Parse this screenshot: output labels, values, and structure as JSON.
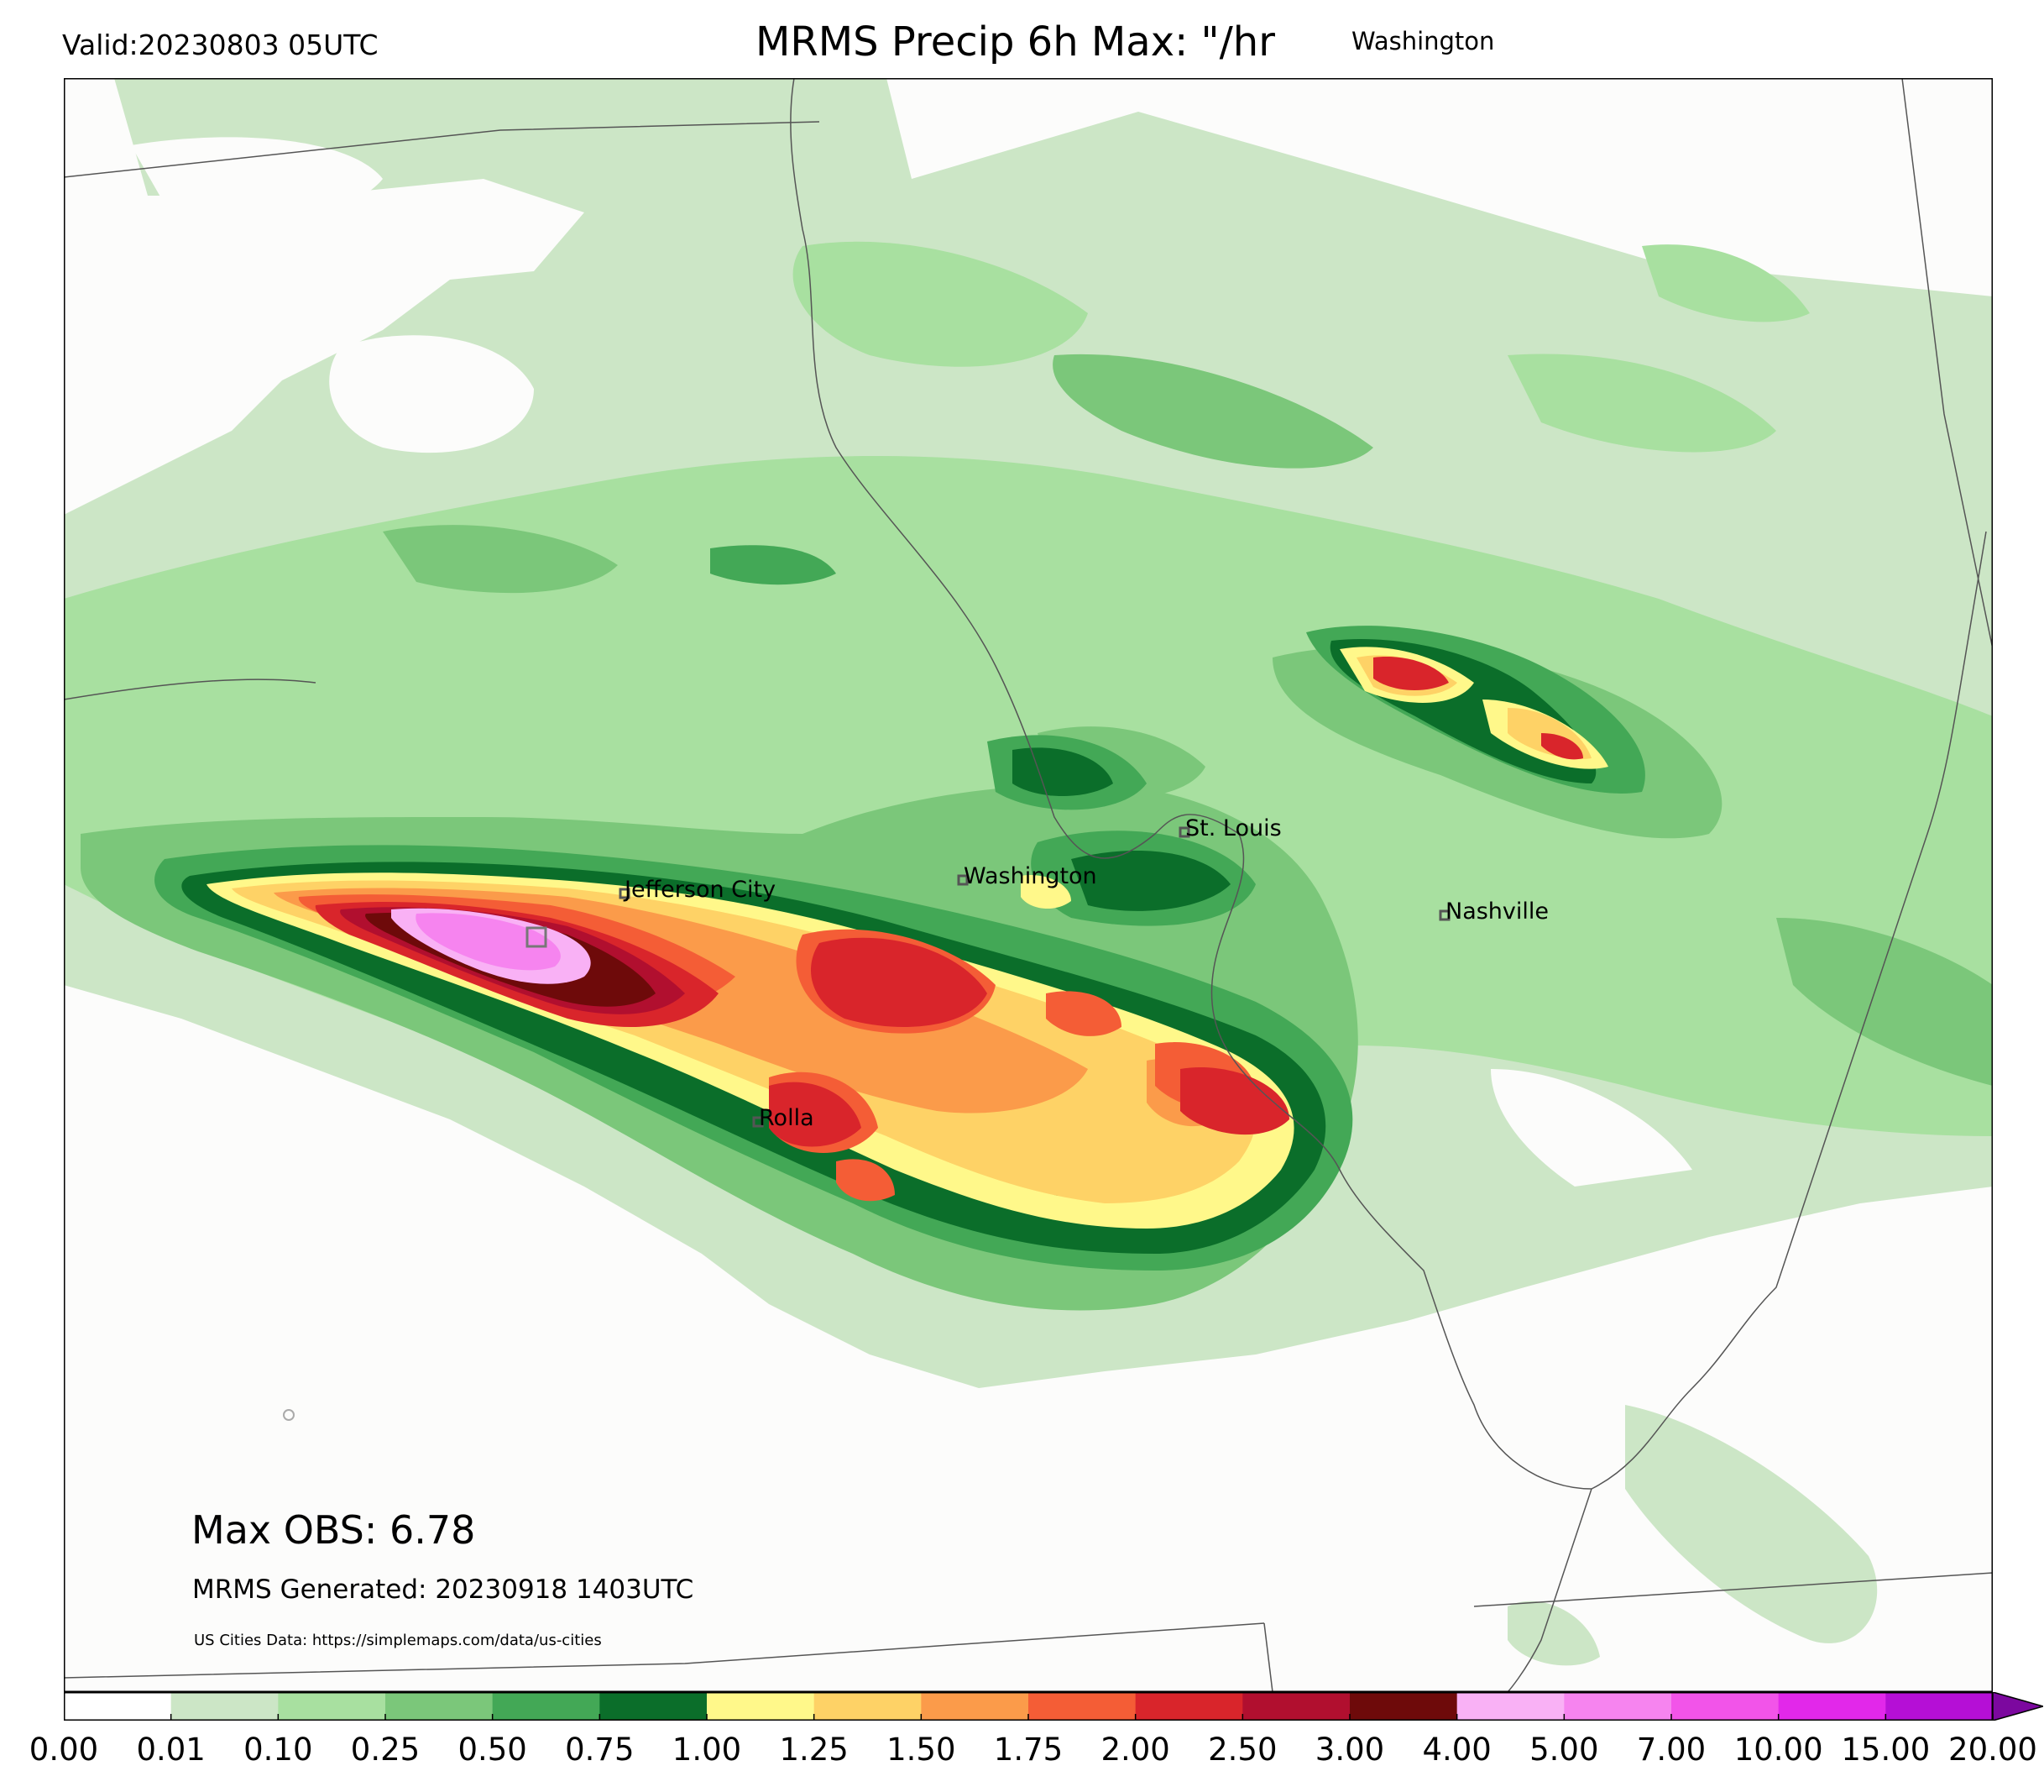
{
  "header": {
    "valid": "Valid:20230803 05UTC",
    "title": "MRMS Precip 6h Max: \"/hr",
    "location": "Washington"
  },
  "map": {
    "background": "#fcfcfb",
    "cities": [
      {
        "name": "Jefferson City"
      },
      {
        "name": "Washington"
      },
      {
        "name": "St. Louis"
      },
      {
        "name": "Nashville"
      },
      {
        "name": "Rolla"
      }
    ],
    "max_obs": "Max OBS: 6.78",
    "generated": "MRMS Generated: 20230918 1403UTC",
    "source": "US Cities Data: https://simplemaps.com/data/us-cities"
  },
  "legend": {
    "ticks": [
      "0.00",
      "0.01",
      "0.10",
      "0.25",
      "0.50",
      "0.75",
      "1.00",
      "1.25",
      "1.50",
      "1.75",
      "2.00",
      "2.50",
      "3.00",
      "4.00",
      "5.00",
      "7.00",
      "10.00",
      "15.00",
      "20.00"
    ],
    "colors": [
      "#ffffff",
      "#cce6c6",
      "#a8e0a0",
      "#7bc77a",
      "#43a856",
      "#0b6e2a",
      "#fff88a",
      "#fed266",
      "#fb9b4a",
      "#f45d36",
      "#d9252b",
      "#b10f2f",
      "#6e0a0a",
      "#f9b1f5",
      "#f684ef",
      "#f254e9",
      "#e228ea",
      "#b50fd6",
      "#7c089f"
    ]
  }
}
